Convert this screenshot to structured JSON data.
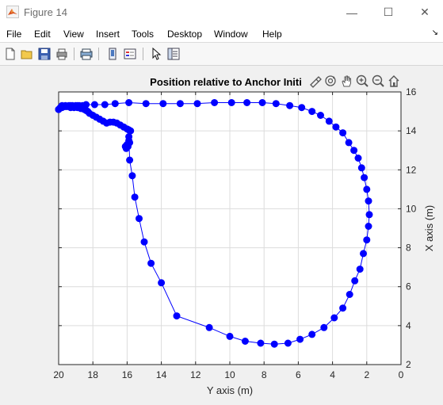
{
  "window": {
    "title": "Figure 14",
    "minimize_label": "—",
    "maximize_label": "☐",
    "close_label": "✕"
  },
  "menu": {
    "items": [
      "File",
      "Edit",
      "View",
      "Insert",
      "Tools",
      "Desktop",
      "Window",
      "Help"
    ],
    "overflow_icon": "dock-arrow-icon"
  },
  "toolbar": {
    "icons": [
      "new-figure-icon",
      "open-file-icon",
      "save-icon",
      "print-icon",
      "print-preview-icon",
      "link-plot-icon",
      "insert-legend-icon",
      "edit-plot-icon",
      "property-inspector-icon"
    ]
  },
  "axes_toolbar": {
    "icons": [
      "brush-icon",
      "rotate-3d-icon",
      "pan-icon",
      "zoom-in-icon",
      "zoom-out-icon",
      "restore-view-icon"
    ]
  },
  "colors": {
    "series": "#0000ff",
    "grid": "#dcdcdc",
    "axes_bg": "#ffffff"
  },
  "chart_data": {
    "type": "line",
    "title": "Position relative to Anchor Initi",
    "xlabel": "Y axis (m)",
    "ylabel": "X axis (m)",
    "xlim": [
      20,
      0
    ],
    "ylim": [
      2,
      16
    ],
    "x_reversed": true,
    "y_axis_location": "right",
    "grid": true,
    "xticks": [
      20,
      18,
      16,
      14,
      12,
      10,
      8,
      6,
      4,
      2,
      0
    ],
    "yticks": [
      2,
      4,
      6,
      8,
      10,
      12,
      14,
      16
    ],
    "series": [
      {
        "marker": "filled-circle",
        "x": [
          20.0,
          19.9,
          19.8,
          19.7,
          19.6,
          19.5,
          19.4,
          19.3,
          19.2,
          19.1,
          19.0,
          18.9,
          18.8,
          18.7,
          18.6,
          18.5,
          18.4,
          18.3,
          18.2,
          18.0,
          17.8,
          17.6,
          17.4,
          17.2,
          17.0,
          16.8,
          16.6,
          16.4,
          16.2,
          16.0,
          15.9,
          15.8,
          15.9,
          16.0,
          16.1,
          16.05,
          15.95,
          15.85,
          15.9,
          15.85,
          15.7,
          15.55,
          15.3,
          15.0,
          14.6,
          14.0,
          13.1,
          11.2,
          10.0,
          9.1,
          8.2,
          7.4,
          6.6,
          5.9,
          5.2,
          4.5,
          3.9,
          3.4,
          3.0,
          2.7,
          2.4,
          2.2,
          2.0,
          1.9,
          1.85,
          1.9,
          2.0,
          2.15,
          2.3,
          2.5,
          2.75,
          3.05,
          3.4,
          3.8,
          4.2,
          4.7,
          5.2,
          5.8,
          6.5,
          7.3,
          8.1,
          9.0,
          9.9,
          10.9,
          11.9,
          12.9,
          13.9,
          14.9,
          15.9,
          16.7,
          17.3,
          17.9,
          18.4,
          18.9,
          19.3,
          19.6,
          19.8,
          20.0
        ],
        "y": [
          15.1,
          15.2,
          15.3,
          15.25,
          15.3,
          15.25,
          15.3,
          15.2,
          15.3,
          15.2,
          15.3,
          15.2,
          15.3,
          15.15,
          15.3,
          15.1,
          15.05,
          15.0,
          14.9,
          14.8,
          14.7,
          14.6,
          14.5,
          14.4,
          14.45,
          14.45,
          14.4,
          14.3,
          14.2,
          14.1,
          14.05,
          14.0,
          13.5,
          13.3,
          13.2,
          13.1,
          13.2,
          13.4,
          13.7,
          12.5,
          11.7,
          10.6,
          9.5,
          8.3,
          7.2,
          6.2,
          4.5,
          3.9,
          3.45,
          3.2,
          3.1,
          3.05,
          3.1,
          3.3,
          3.55,
          3.9,
          4.4,
          4.9,
          5.6,
          6.3,
          6.9,
          7.7,
          8.4,
          9.1,
          9.7,
          10.4,
          11.0,
          11.6,
          12.1,
          12.6,
          13.0,
          13.4,
          13.9,
          14.2,
          14.5,
          14.8,
          15.0,
          15.2,
          15.3,
          15.4,
          15.45,
          15.45,
          15.45,
          15.45,
          15.4,
          15.4,
          15.4,
          15.4,
          15.45,
          15.4,
          15.35,
          15.35,
          15.35,
          15.3,
          15.3,
          15.25,
          15.2,
          15.1
        ]
      }
    ]
  }
}
